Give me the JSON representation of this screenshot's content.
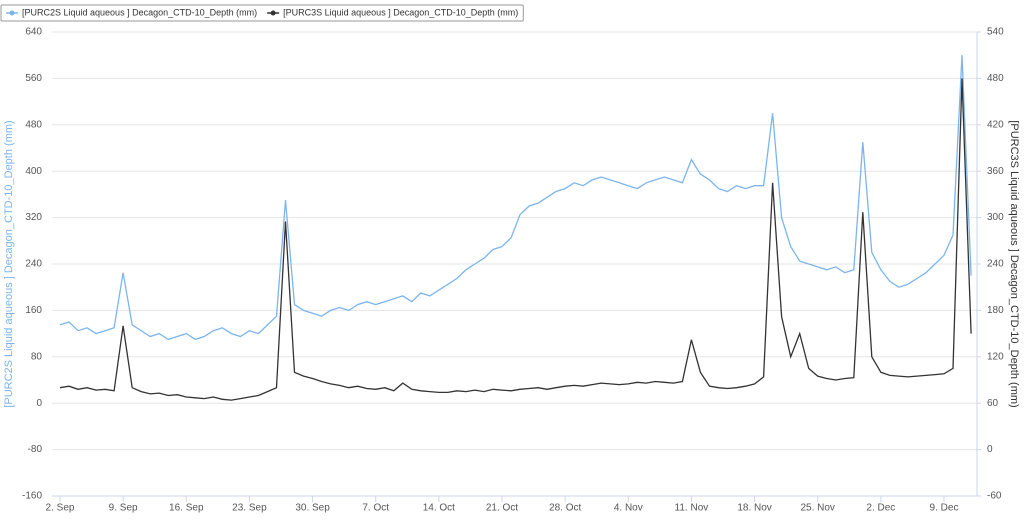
{
  "chart_data": {
    "type": "line",
    "categories": [
      "2. Sep",
      null,
      null,
      null,
      null,
      null,
      null,
      "9. Sep",
      null,
      null,
      null,
      null,
      null,
      null,
      "16. Sep",
      null,
      null,
      null,
      null,
      null,
      null,
      "23. Sep",
      null,
      null,
      null,
      null,
      null,
      null,
      "30. Sep",
      null,
      null,
      null,
      null,
      null,
      null,
      "7. Oct",
      null,
      null,
      null,
      null,
      null,
      null,
      "14. Oct",
      null,
      null,
      null,
      null,
      null,
      null,
      "21. Oct",
      null,
      null,
      null,
      null,
      null,
      null,
      "28. Oct",
      null,
      null,
      null,
      null,
      null,
      null,
      "4. Nov",
      null,
      null,
      null,
      null,
      null,
      null,
      "11. Nov",
      null,
      null,
      null,
      null,
      null,
      null,
      "18. Nov",
      null,
      null,
      null,
      null,
      null,
      null,
      "25. Nov",
      null,
      null,
      null,
      null,
      null,
      null,
      "2. Dec",
      null,
      null,
      null,
      null,
      null,
      null,
      "9. Dec",
      null,
      null,
      null
    ],
    "series": [
      {
        "name": "[PURC2S Liquid aqueous ] Decagon_CTD-10_Depth (mm)",
        "color": "#7cb5ec",
        "axis": "y",
        "values": [
          135,
          140,
          125,
          130,
          120,
          125,
          130,
          225,
          135,
          125,
          115,
          120,
          110,
          115,
          120,
          110,
          115,
          125,
          130,
          120,
          115,
          125,
          120,
          135,
          150,
          350,
          170,
          160,
          155,
          150,
          160,
          165,
          160,
          170,
          175,
          170,
          175,
          180,
          185,
          175,
          190,
          185,
          195,
          205,
          215,
          230,
          240,
          250,
          265,
          270,
          285,
          325,
          340,
          345,
          355,
          365,
          370,
          380,
          375,
          385,
          390,
          385,
          380,
          375,
          370,
          380,
          385,
          390,
          385,
          380,
          420,
          395,
          385,
          370,
          365,
          375,
          370,
          375,
          375,
          500,
          320,
          270,
          245,
          240,
          235,
          230,
          235,
          225,
          230,
          450,
          260,
          230,
          210,
          200,
          205,
          215,
          225,
          240,
          255,
          290,
          600,
          220
        ]
      },
      {
        "name": "[PURC3S Liquid aqueous ] Decagon_CTD-10_Depth (mm)",
        "color": "#333333",
        "axis": "y2",
        "values": [
          80,
          82,
          78,
          80,
          77,
          78,
          76,
          160,
          80,
          75,
          72,
          73,
          70,
          71,
          68,
          67,
          66,
          68,
          65,
          64,
          66,
          68,
          70,
          75,
          80,
          295,
          100,
          95,
          92,
          88,
          85,
          83,
          80,
          82,
          79,
          78,
          80,
          76,
          86,
          78,
          76,
          75,
          74,
          74,
          76,
          75,
          77,
          75,
          78,
          77,
          76,
          78,
          79,
          80,
          78,
          80,
          82,
          83,
          82,
          84,
          86,
          85,
          84,
          85,
          87,
          86,
          88,
          87,
          86,
          88,
          142,
          100,
          82,
          80,
          79,
          80,
          82,
          85,
          94,
          345,
          172,
          120,
          150,
          105,
          95,
          92,
          90,
          92,
          93,
          307,
          120,
          100,
          96,
          95,
          94,
          95,
          96,
          97,
          98,
          105,
          480,
          150
        ]
      }
    ],
    "ylabel": "[PURC2S Liquid aqueous ] Decagon_CTD-10_Depth (mm)",
    "y2label": "[PURC3S Liquid aqueous ] Decagon_CTD-10_Depth (mm)",
    "ylim": [
      -160,
      640
    ],
    "yticks": [
      -160,
      -80,
      0,
      80,
      160,
      240,
      320,
      400,
      480,
      560,
      640
    ],
    "y2lim": [
      -60,
      540
    ],
    "y2ticks": [
      -60,
      0,
      60,
      120,
      180,
      240,
      300,
      360,
      420,
      480,
      540
    ],
    "grid": true
  }
}
